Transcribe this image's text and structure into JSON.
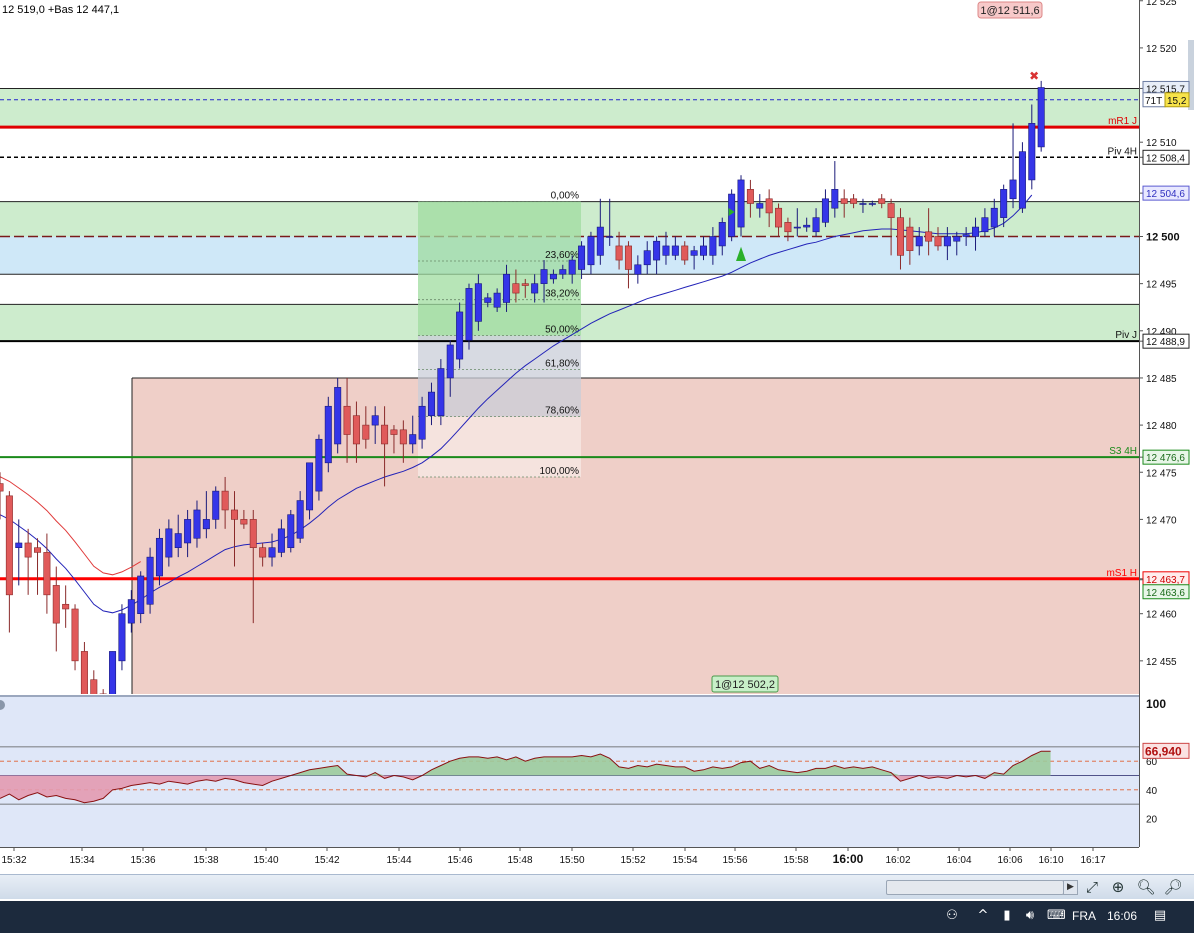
{
  "header": {
    "price_info": "12 519,0 +Bas 12 447,1",
    "order_tag": "1@12 511,6",
    "order_tag_bottom": "1@12 502,2"
  },
  "colors": {
    "up_candle": "#3535e8",
    "down_candle": "#e05a5a",
    "zone_green": "#cdeccd",
    "zone_blue": "#cfe8f8",
    "zone_red": "#efcfc8",
    "fib_box_green": "#9fdc9f",
    "ma_line": "#2323b8",
    "rsi_fill_pos": "#9ccb9c",
    "rsi_fill_neg": "#e39ab0"
  },
  "price_axis": {
    "ticks": [
      "12 525",
      "12 520",
      "12 515,7",
      "12 510",
      "12 508,4",
      "12 504,6",
      "12 500",
      "12 495",
      "12 490",
      "12 488,9",
      "12 485",
      "12 480",
      "12 476,6",
      "12 475",
      "12 470",
      "12 463,7",
      "12 463,6",
      "12 460",
      "12 455"
    ],
    "current_tag": "71T",
    "current_value": "15,2"
  },
  "levels": [
    {
      "label": "mR1 J",
      "price": 12511.6,
      "color": "#e00000",
      "style": "solid"
    },
    {
      "label": "Piv 4H",
      "price": 12508.4,
      "color": "#000000",
      "style": "dashed"
    },
    {
      "label": "Piv J",
      "price": 12488.9,
      "color": "#000000",
      "style": "solid"
    },
    {
      "label": "S3 4H",
      "price": 12476.6,
      "color": "#1a8a1a",
      "style": "solid"
    },
    {
      "label": "mS1 H",
      "price": 12463.7,
      "color": "#ff0000",
      "style": "solid"
    }
  ],
  "fibonacci": {
    "levels": [
      {
        "label": "0,00%",
        "price": 12503.7
      },
      {
        "label": "23,60%",
        "price": 12497.4
      },
      {
        "label": "38,20%",
        "price": 12493.3
      },
      {
        "label": "50,00%",
        "price": 12489.5
      },
      {
        "label": "61,80%",
        "price": 12485.9
      },
      {
        "label": "78,60%",
        "price": 12480.9
      },
      {
        "label": "100,00%",
        "price": 12474.5
      }
    ]
  },
  "time_axis": {
    "labels": [
      "15:32",
      "15:34",
      "15:36",
      "15:38",
      "15:40",
      "15:42",
      "15:44",
      "15:46",
      "15:48",
      "15:50",
      "15:52",
      "15:54",
      "15:56",
      "15:58",
      "16:00",
      "16:02",
      "16:04",
      "16:06",
      "16:10",
      "16:17"
    ]
  },
  "rsi_panel": {
    "current_value": "66,940",
    "ticks": [
      "100",
      "60",
      "40",
      "20"
    ]
  },
  "taskbar": {
    "language": "FRA",
    "clock": "16:06"
  },
  "chart_data": {
    "type": "candlestick",
    "ylim": [
      12451,
      12526
    ],
    "candles": [
      {
        "o": 12473.8,
        "h": 12475.0,
        "l": 12470.0,
        "c": 12473.0
      },
      {
        "o": 12472.5,
        "h": 12473.0,
        "l": 12458.0,
        "c": 12462.0
      },
      {
        "o": 12467.0,
        "h": 12470.0,
        "l": 12463.0,
        "c": 12467.5
      },
      {
        "o": 12467.5,
        "h": 12469.0,
        "l": 12462.0,
        "c": 12466.0
      },
      {
        "o": 12467.0,
        "h": 12468.0,
        "l": 12462.0,
        "c": 12466.5
      },
      {
        "o": 12466.5,
        "h": 12468.5,
        "l": 12460.0,
        "c": 12462.0
      },
      {
        "o": 12463.0,
        "h": 12465.0,
        "l": 12456.0,
        "c": 12459.0
      },
      {
        "o": 12461.0,
        "h": 12463.0,
        "l": 12458.5,
        "c": 12460.5
      },
      {
        "o": 12460.5,
        "h": 12461.0,
        "l": 12454.0,
        "c": 12455.0
      },
      {
        "o": 12456.0,
        "h": 12457.0,
        "l": 12450.0,
        "c": 12451.0
      },
      {
        "o": 12453.0,
        "h": 12454.0,
        "l": 12449.0,
        "c": 12450.0
      },
      {
        "o": 12451.5,
        "h": 12452.0,
        "l": 12450.0,
        "c": 12451.0
      },
      {
        "o": 12451.0,
        "h": 12456.0,
        "l": 12450.0,
        "c": 12456.0
      },
      {
        "o": 12455.0,
        "h": 12461.0,
        "l": 12454.0,
        "c": 12460.0
      },
      {
        "o": 12459.0,
        "h": 12462.5,
        "l": 12458.0,
        "c": 12461.5
      },
      {
        "o": 12460.0,
        "h": 12464.5,
        "l": 12459.0,
        "c": 12464.0
      },
      {
        "o": 12461.0,
        "h": 12467.0,
        "l": 12460.0,
        "c": 12466.0
      },
      {
        "o": 12464.0,
        "h": 12469.0,
        "l": 12463.0,
        "c": 12468.0
      },
      {
        "o": 12466.0,
        "h": 12470.0,
        "l": 12465.0,
        "c": 12469.0
      },
      {
        "o": 12467.0,
        "h": 12470.5,
        "l": 12466.0,
        "c": 12468.5
      },
      {
        "o": 12467.5,
        "h": 12471.0,
        "l": 12466.0,
        "c": 12470.0
      },
      {
        "o": 12468.0,
        "h": 12472.0,
        "l": 12467.0,
        "c": 12471.0
      },
      {
        "o": 12469.0,
        "h": 12473.0,
        "l": 12468.0,
        "c": 12470.0
      },
      {
        "o": 12470.0,
        "h": 12473.5,
        "l": 12469.0,
        "c": 12473.0
      },
      {
        "o": 12473.0,
        "h": 12474.5,
        "l": 12469.0,
        "c": 12471.0
      },
      {
        "o": 12471.0,
        "h": 12473.0,
        "l": 12465.0,
        "c": 12470.0
      },
      {
        "o": 12470.0,
        "h": 12471.0,
        "l": 12469.0,
        "c": 12469.5
      },
      {
        "o": 12470.0,
        "h": 12471.0,
        "l": 12459.0,
        "c": 12467.0
      },
      {
        "o": 12467.0,
        "h": 12467.5,
        "l": 12465.0,
        "c": 12466.0
      },
      {
        "o": 12466.0,
        "h": 12468.5,
        "l": 12465.0,
        "c": 12467.0
      },
      {
        "o": 12466.5,
        "h": 12470.0,
        "l": 12466.0,
        "c": 12469.0
      },
      {
        "o": 12467.0,
        "h": 12471.0,
        "l": 12466.5,
        "c": 12470.5
      },
      {
        "o": 12468.0,
        "h": 12473.0,
        "l": 12467.5,
        "c": 12472.0
      },
      {
        "o": 12471.0,
        "h": 12476.0,
        "l": 12470.0,
        "c": 12476.0
      },
      {
        "o": 12473.0,
        "h": 12479.0,
        "l": 12472.0,
        "c": 12478.5
      },
      {
        "o": 12476.0,
        "h": 12483.0,
        "l": 12475.0,
        "c": 12482.0
      },
      {
        "o": 12478.0,
        "h": 12485.0,
        "l": 12477.0,
        "c": 12484.0
      },
      {
        "o": 12482.0,
        "h": 12485.0,
        "l": 12476.0,
        "c": 12479.0
      },
      {
        "o": 12481.0,
        "h": 12482.5,
        "l": 12476.0,
        "c": 12478.0
      },
      {
        "o": 12480.0,
        "h": 12482.0,
        "l": 12477.5,
        "c": 12478.5
      },
      {
        "o": 12480.0,
        "h": 12482.0,
        "l": 12478.0,
        "c": 12481.0
      },
      {
        "o": 12480.0,
        "h": 12482.0,
        "l": 12473.5,
        "c": 12478.0
      },
      {
        "o": 12479.5,
        "h": 12480.0,
        "l": 12477.0,
        "c": 12479.0
      },
      {
        "o": 12479.5,
        "h": 12480.5,
        "l": 12476.0,
        "c": 12478.0
      },
      {
        "o": 12478.0,
        "h": 12481.0,
        "l": 12477.0,
        "c": 12479.0
      },
      {
        "o": 12478.5,
        "h": 12483.0,
        "l": 12477.5,
        "c": 12482.0
      },
      {
        "o": 12481.0,
        "h": 12484.5,
        "l": 12480.0,
        "c": 12483.5
      },
      {
        "o": 12481.0,
        "h": 12487.0,
        "l": 12480.0,
        "c": 12486.0
      },
      {
        "o": 12485.0,
        "h": 12489.0,
        "l": 12483.0,
        "c": 12488.5
      },
      {
        "o": 12487.0,
        "h": 12493.0,
        "l": 12486.0,
        "c": 12492.0
      },
      {
        "o": 12489.0,
        "h": 12495.0,
        "l": 12488.0,
        "c": 12494.5
      },
      {
        "o": 12491.0,
        "h": 12496.0,
        "l": 12490.0,
        "c": 12495.0
      },
      {
        "o": 12493.0,
        "h": 12494.0,
        "l": 12492.5,
        "c": 12493.5
      },
      {
        "o": 12492.5,
        "h": 12494.5,
        "l": 12492.0,
        "c": 12494.0
      },
      {
        "o": 12493.0,
        "h": 12497.0,
        "l": 12492.0,
        "c": 12496.0
      },
      {
        "o": 12495.0,
        "h": 12496.5,
        "l": 12493.0,
        "c": 12494.0
      },
      {
        "o": 12495.0,
        "h": 12495.5,
        "l": 12493.5,
        "c": 12494.8
      },
      {
        "o": 12494.0,
        "h": 12496.0,
        "l": 12493.0,
        "c": 12495.0
      },
      {
        "o": 12495.0,
        "h": 12497.5,
        "l": 12493.0,
        "c": 12496.5
      },
      {
        "o": 12495.5,
        "h": 12496.5,
        "l": 12495.0,
        "c": 12496.0
      },
      {
        "o": 12496.0,
        "h": 12497.0,
        "l": 12495.5,
        "c": 12496.5
      },
      {
        "o": 12496.0,
        "h": 12498.0,
        "l": 12495.0,
        "c": 12497.5
      },
      {
        "o": 12496.5,
        "h": 12499.5,
        "l": 12495.5,
        "c": 12499.0
      },
      {
        "o": 12497.0,
        "h": 12500.5,
        "l": 12496.0,
        "c": 12500.0
      },
      {
        "o": 12498.0,
        "h": 12504.0,
        "l": 12497.0,
        "c": 12501.0
      },
      {
        "o": 12500.0,
        "h": 12504.0,
        "l": 12499.0,
        "c": 12500.0
      },
      {
        "o": 12499.0,
        "h": 12500.5,
        "l": 12496.5,
        "c": 12497.5
      },
      {
        "o": 12499.0,
        "h": 12499.5,
        "l": 12494.5,
        "c": 12496.5
      },
      {
        "o": 12496.0,
        "h": 12498.0,
        "l": 12495.0,
        "c": 12497.0
      },
      {
        "o": 12497.0,
        "h": 12499.5,
        "l": 12496.0,
        "c": 12498.5
      },
      {
        "o": 12497.5,
        "h": 12500.0,
        "l": 12496.0,
        "c": 12499.5
      },
      {
        "o": 12498.0,
        "h": 12500.5,
        "l": 12497.0,
        "c": 12499.0
      },
      {
        "o": 12498.0,
        "h": 12500.0,
        "l": 12497.5,
        "c": 12499.0
      },
      {
        "o": 12499.0,
        "h": 12499.5,
        "l": 12497.0,
        "c": 12497.5
      },
      {
        "o": 12498.0,
        "h": 12499.0,
        "l": 12496.5,
        "c": 12498.5
      },
      {
        "o": 12498.0,
        "h": 12500.0,
        "l": 12497.5,
        "c": 12499.0
      },
      {
        "o": 12498.0,
        "h": 12501.0,
        "l": 12497.0,
        "c": 12500.0
      },
      {
        "o": 12499.0,
        "h": 12502.0,
        "l": 12498.0,
        "c": 12501.5
      },
      {
        "o": 12500.0,
        "h": 12505.0,
        "l": 12499.5,
        "c": 12504.5
      },
      {
        "o": 12501.0,
        "h": 12506.5,
        "l": 12500.0,
        "c": 12506.0
      },
      {
        "o": 12505.0,
        "h": 12506.0,
        "l": 12502.0,
        "c": 12503.5
      },
      {
        "o": 12503.0,
        "h": 12504.5,
        "l": 12502.0,
        "c": 12503.5
      },
      {
        "o": 12504.0,
        "h": 12505.0,
        "l": 12501.0,
        "c": 12502.5
      },
      {
        "o": 12503.0,
        "h": 12503.5,
        "l": 12500.0,
        "c": 12501.0
      },
      {
        "o": 12501.5,
        "h": 12502.0,
        "l": 12499.5,
        "c": 12500.5
      },
      {
        "o": 12501.0,
        "h": 12503.0,
        "l": 12500.0,
        "c": 12501.0
      },
      {
        "o": 12501.0,
        "h": 12502.0,
        "l": 12500.5,
        "c": 12501.2
      },
      {
        "o": 12500.5,
        "h": 12503.0,
        "l": 12500.0,
        "c": 12502.0
      },
      {
        "o": 12501.5,
        "h": 12505.0,
        "l": 12501.0,
        "c": 12504.0
      },
      {
        "o": 12503.0,
        "h": 12508.0,
        "l": 12502.0,
        "c": 12505.0
      },
      {
        "o": 12504.0,
        "h": 12505.0,
        "l": 12502.0,
        "c": 12503.5
      },
      {
        "o": 12504.0,
        "h": 12504.5,
        "l": 12503.0,
        "c": 12503.5
      },
      {
        "o": 12503.5,
        "h": 12504.0,
        "l": 12502.5,
        "c": 12503.5
      },
      {
        "o": 12503.5,
        "h": 12503.8,
        "l": 12503.2,
        "c": 12503.5
      },
      {
        "o": 12504.0,
        "h": 12504.5,
        "l": 12503.0,
        "c": 12503.5
      },
      {
        "o": 12503.5,
        "h": 12504.0,
        "l": 12498.0,
        "c": 12502.0
      },
      {
        "o": 12502.0,
        "h": 12503.0,
        "l": 12496.5,
        "c": 12498.0
      },
      {
        "o": 12501.0,
        "h": 12502.0,
        "l": 12497.0,
        "c": 12498.5
      },
      {
        "o": 12499.0,
        "h": 12501.0,
        "l": 12498.0,
        "c": 12500.0
      },
      {
        "o": 12500.5,
        "h": 12503.0,
        "l": 12498.0,
        "c": 12499.5
      },
      {
        "o": 12500.0,
        "h": 12501.0,
        "l": 12498.5,
        "c": 12499.0
      },
      {
        "o": 12499.0,
        "h": 12501.0,
        "l": 12497.5,
        "c": 12500.0
      },
      {
        "o": 12499.5,
        "h": 12500.5,
        "l": 12498.0,
        "c": 12500.0
      },
      {
        "o": 12500.0,
        "h": 12501.0,
        "l": 12499.0,
        "c": 12500.2
      },
      {
        "o": 12500.0,
        "h": 12502.0,
        "l": 12498.5,
        "c": 12501.0
      },
      {
        "o": 12500.5,
        "h": 12503.0,
        "l": 12500.0,
        "c": 12502.0
      },
      {
        "o": 12501.0,
        "h": 12504.0,
        "l": 12500.0,
        "c": 12503.0
      },
      {
        "o": 12502.0,
        "h": 12505.5,
        "l": 12501.0,
        "c": 12505.0
      },
      {
        "o": 12504.0,
        "h": 12512.0,
        "l": 12503.0,
        "c": 12506.0
      },
      {
        "o": 12503.0,
        "h": 12510.0,
        "l": 12502.5,
        "c": 12509.0
      },
      {
        "o": 12506.0,
        "h": 12514.0,
        "l": 12505.0,
        "c": 12512.0
      },
      {
        "o": 12509.5,
        "h": 12516.5,
        "l": 12509.0,
        "c": 12515.8
      }
    ],
    "ma": [
      12470.5,
      12470.0,
      12469.3,
      12468.6,
      12467.8,
      12466.9,
      12465.8,
      12464.8,
      12463.6,
      12462.3,
      12461.0,
      12460.3,
      12460.1,
      12460.4,
      12460.9,
      12461.5,
      12462.2,
      12462.8,
      12463.3,
      12463.9,
      12464.4,
      12465.0,
      12465.6,
      12466.2,
      12466.8,
      12467.1,
      12467.3,
      12467.4,
      12467.5,
      12467.6,
      12467.9,
      12468.3,
      12468.9,
      12469.6,
      12470.4,
      12471.3,
      12472.1,
      12472.7,
      12473.3,
      12473.7,
      12474.1,
      12474.5,
      12474.8,
      12475.1,
      12475.5,
      12476.0,
      12476.7,
      12477.5,
      12478.5,
      12479.6,
      12480.7,
      12481.8,
      12482.8,
      12483.7,
      12484.6,
      12485.5,
      12486.3,
      12487.0,
      12487.7,
      12488.4,
      12489.0,
      12489.6,
      12490.2,
      12490.8,
      12491.3,
      12491.8,
      12492.2,
      12492.6,
      12493.0,
      12493.4,
      12493.7,
      12494.0,
      12494.3,
      12494.6,
      12494.9,
      12495.2,
      12495.5,
      12495.8,
      12496.2,
      12496.7,
      12497.2,
      12497.6,
      12498.0,
      12498.3,
      12498.6,
      12498.9,
      12499.2,
      12499.4,
      12499.7,
      12500.0,
      12500.2,
      12500.4,
      12500.6,
      12500.7,
      12500.8,
      12500.8,
      12500.7,
      12500.6,
      12500.5,
      12500.4,
      12500.3,
      12500.3,
      12500.3,
      12500.3,
      12500.4,
      12500.6,
      12500.9,
      12501.4,
      12502.2,
      12503.2,
      12504.4
    ],
    "rsi": [
      34,
      37,
      33,
      36,
      38,
      35,
      36,
      34,
      33,
      31,
      32,
      34,
      40,
      41,
      43,
      44,
      45,
      44,
      46,
      45,
      44,
      46,
      47,
      46,
      48,
      47,
      45,
      44,
      43,
      46,
      48,
      50,
      52,
      54,
      55,
      56,
      57,
      51,
      50,
      49,
      52,
      48,
      50,
      49,
      47,
      50,
      54,
      57,
      60,
      62,
      63,
      63,
      62,
      63,
      61,
      63,
      60,
      62,
      63,
      63,
      63,
      63,
      64,
      63,
      65,
      62,
      56,
      55,
      57,
      56,
      58,
      57,
      56,
      56,
      53,
      54,
      56,
      55,
      56,
      59,
      60,
      55,
      57,
      54,
      53,
      52,
      53,
      55,
      55,
      57,
      55,
      56,
      55,
      56,
      54,
      52,
      46,
      48,
      50,
      48,
      49,
      48,
      50,
      49,
      50,
      48,
      52,
      51,
      57,
      60,
      64,
      67,
      66.9
    ]
  }
}
